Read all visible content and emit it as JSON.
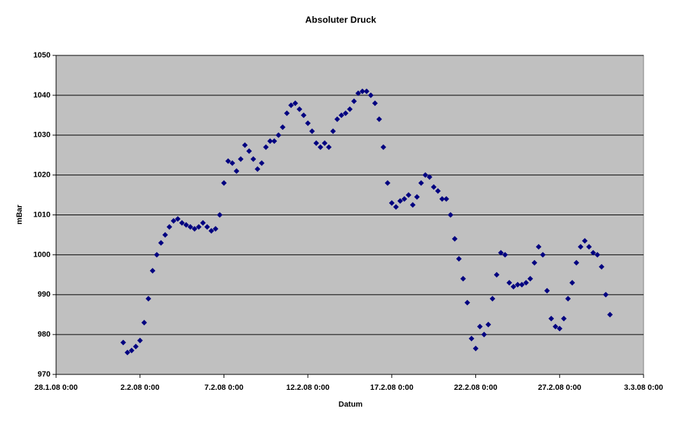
{
  "chart_data": {
    "type": "scatter",
    "title": "Absoluter Druck",
    "x_label": "Datum",
    "y_label": "mBar",
    "x": [
      "2008-02-01 00:00",
      "2008-02-01 06:00",
      "2008-02-01 12:00",
      "2008-02-01 18:00",
      "2008-02-02 00:00",
      "2008-02-02 06:00",
      "2008-02-02 12:00",
      "2008-02-02 18:00",
      "2008-02-03 00:00",
      "2008-02-03 06:00",
      "2008-02-03 12:00",
      "2008-02-03 18:00",
      "2008-02-04 00:00",
      "2008-02-04 06:00",
      "2008-02-04 12:00",
      "2008-02-04 18:00",
      "2008-02-05 00:00",
      "2008-02-05 06:00",
      "2008-02-05 12:00",
      "2008-02-05 18:00",
      "2008-02-06 00:00",
      "2008-02-06 06:00",
      "2008-02-06 12:00",
      "2008-02-06 18:00",
      "2008-02-07 00:00",
      "2008-02-07 06:00",
      "2008-02-07 12:00",
      "2008-02-07 18:00",
      "2008-02-08 00:00",
      "2008-02-08 06:00",
      "2008-02-08 12:00",
      "2008-02-08 18:00",
      "2008-02-09 00:00",
      "2008-02-09 06:00",
      "2008-02-09 12:00",
      "2008-02-09 18:00",
      "2008-02-10 00:00",
      "2008-02-10 06:00",
      "2008-02-10 12:00",
      "2008-02-10 18:00",
      "2008-02-11 00:00",
      "2008-02-11 06:00",
      "2008-02-11 12:00",
      "2008-02-11 18:00",
      "2008-02-12 00:00",
      "2008-02-12 06:00",
      "2008-02-12 12:00",
      "2008-02-12 18:00",
      "2008-02-13 00:00",
      "2008-02-13 06:00",
      "2008-02-13 12:00",
      "2008-02-13 18:00",
      "2008-02-14 00:00",
      "2008-02-14 06:00",
      "2008-02-14 12:00",
      "2008-02-14 18:00",
      "2008-02-15 00:00",
      "2008-02-15 06:00",
      "2008-02-15 12:00",
      "2008-02-15 18:00",
      "2008-02-16 00:00",
      "2008-02-16 06:00",
      "2008-02-16 12:00",
      "2008-02-16 18:00",
      "2008-02-17 00:00",
      "2008-02-17 06:00",
      "2008-02-17 12:00",
      "2008-02-17 18:00",
      "2008-02-18 00:00",
      "2008-02-18 06:00",
      "2008-02-18 12:00",
      "2008-02-18 18:00",
      "2008-02-19 00:00",
      "2008-02-19 06:00",
      "2008-02-19 12:00",
      "2008-02-19 18:00",
      "2008-02-20 00:00",
      "2008-02-20 06:00",
      "2008-02-20 12:00",
      "2008-02-20 18:00",
      "2008-02-21 00:00",
      "2008-02-21 06:00",
      "2008-02-21 12:00",
      "2008-02-21 18:00",
      "2008-02-22 00:00",
      "2008-02-22 06:00",
      "2008-02-22 12:00",
      "2008-02-22 18:00",
      "2008-02-23 00:00",
      "2008-02-23 06:00",
      "2008-02-23 12:00",
      "2008-02-23 18:00",
      "2008-02-24 00:00",
      "2008-02-24 06:00",
      "2008-02-24 12:00",
      "2008-02-24 18:00",
      "2008-02-25 00:00",
      "2008-02-25 06:00",
      "2008-02-25 12:00",
      "2008-02-25 18:00",
      "2008-02-26 00:00",
      "2008-02-26 06:00",
      "2008-02-26 12:00",
      "2008-02-26 18:00",
      "2008-02-27 00:00",
      "2008-02-27 06:00",
      "2008-02-27 12:00",
      "2008-02-27 18:00",
      "2008-02-28 00:00",
      "2008-02-28 06:00",
      "2008-02-28 12:00",
      "2008-02-28 18:00",
      "2008-02-29 00:00",
      "2008-02-29 06:00",
      "2008-02-29 12:00",
      "2008-02-29 18:00",
      "2008-03-01 00:00"
    ],
    "series": [
      {
        "color": "#000080",
        "values": [
          978,
          975.5,
          976,
          977,
          978.5,
          983,
          989,
          996,
          1000,
          1003,
          1005,
          1007,
          1008.5,
          1009,
          1008,
          1007.5,
          1007,
          1006.5,
          1007,
          1008,
          1007,
          1006,
          1006.5,
          1010,
          1018,
          1023.5,
          1023,
          1021,
          1024,
          1027.5,
          1026,
          1024,
          1021.5,
          1023,
          1027,
          1028.5,
          1028.5,
          1030,
          1032,
          1035.5,
          1037.5,
          1038,
          1036.5,
          1035,
          1033,
          1031,
          1028,
          1027,
          1028,
          1027,
          1031,
          1034,
          1035,
          1035.5,
          1036.5,
          1038.5,
          1040.5,
          1041,
          1041,
          1040,
          1038,
          1034,
          1027,
          1018,
          1013,
          1012,
          1013.5,
          1014,
          1015,
          1012.5,
          1014.5,
          1018,
          1020,
          1019.5,
          1017,
          1016,
          1014,
          1014,
          1010,
          1004,
          999,
          994,
          988,
          979,
          976.5,
          982,
          980,
          982.5,
          989,
          995,
          1000.5,
          1000,
          993,
          992,
          992.5,
          992.5,
          993,
          994,
          998,
          1002,
          1000,
          991,
          984,
          982,
          981.5,
          984,
          989,
          993,
          998,
          1002,
          1003.5,
          1002,
          1000.5,
          1000,
          997,
          990,
          985
        ]
      }
    ],
    "xlim": [
      "2008-01-28 00:00",
      "2008-03-03 00:00"
    ],
    "xticks": [
      {
        "value": "2008-01-28 00:00",
        "label": "28.1.08 0:00"
      },
      {
        "value": "2008-02-02 00:00",
        "label": "2.2.08 0:00"
      },
      {
        "value": "2008-02-07 00:00",
        "label": "7.2.08 0:00"
      },
      {
        "value": "2008-02-12 00:00",
        "label": "12.2.08 0:00"
      },
      {
        "value": "2008-02-17 00:00",
        "label": "17.2.08 0:00"
      },
      {
        "value": "2008-02-22 00:00",
        "label": "22.2.08 0:00"
      },
      {
        "value": "2008-02-27 00:00",
        "label": "27.2.08 0:00"
      },
      {
        "value": "2008-03-03 00:00",
        "label": "3.3.08 0:00"
      }
    ],
    "ylim": [
      970,
      1050
    ],
    "yticks": [
      970,
      980,
      990,
      1000,
      1010,
      1020,
      1030,
      1040,
      1050
    ],
    "grid": true,
    "background": "#c0c0c0"
  }
}
